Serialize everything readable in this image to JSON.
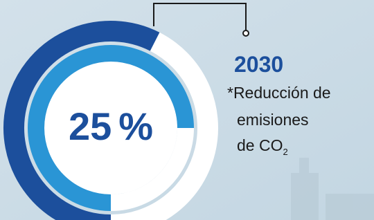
{
  "stat": {
    "value": 25,
    "unit": "%",
    "year": "2030",
    "description": [
      "*Reducción de",
      "emisiones",
      "de CO"
    ],
    "subscript": "2"
  }
}
